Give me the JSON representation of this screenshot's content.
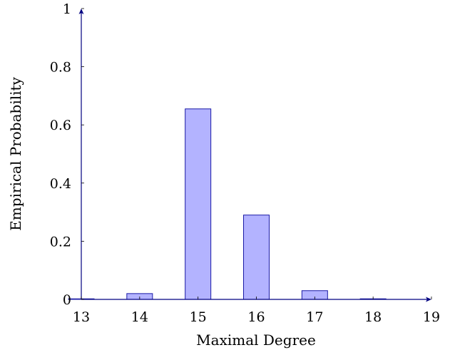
{
  "chart_data": {
    "type": "bar",
    "x": [
      13,
      14,
      15,
      16,
      17,
      18
    ],
    "values": [
      0.001,
      0.02,
      0.655,
      0.29,
      0.03,
      0.002
    ],
    "xlabel": "Maximal Degree",
    "ylabel": "Empirical Probability",
    "xlim": [
      13,
      19
    ],
    "ylim": [
      0,
      1
    ],
    "xticks": [
      13,
      14,
      15,
      16,
      17,
      18,
      19
    ],
    "yticks": [
      0,
      0.2,
      0.4,
      0.6,
      0.8,
      1
    ],
    "xtick_labels": [
      "13",
      "14",
      "15",
      "16",
      "17",
      "18",
      "19"
    ],
    "ytick_labels": [
      "0",
      "0.2",
      "0.4",
      "0.6",
      "0.8",
      "1"
    ],
    "grid": false,
    "bar_fill_color": "#b3b3ff",
    "bar_edge_color": "#1a1aa6",
    "axis_color": "#000080"
  }
}
